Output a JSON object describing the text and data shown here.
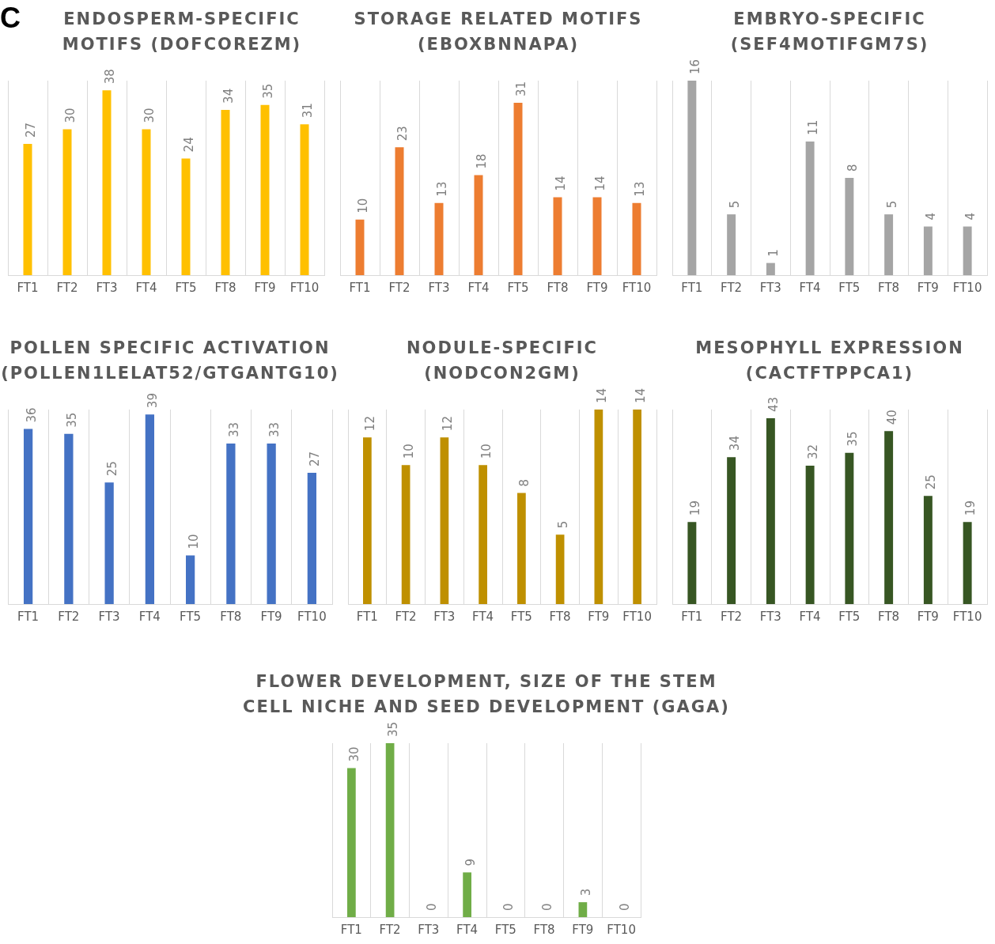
{
  "chart_data": [
    {
      "type": "bar",
      "title": "ENDOSPERM-SPECIFIC MOTIFS (DOFCOREZM)",
      "annotations": [
        "C"
      ],
      "categories": [
        "FT1",
        "FT2",
        "FT3",
        "FT4",
        "FT5",
        "FT8",
        "FT9",
        "FT10"
      ],
      "values": [
        27,
        30,
        38,
        30,
        24,
        34,
        35,
        31
      ],
      "color": "#ffc000",
      "data_labels": true,
      "grid": "x",
      "tick_labels": "x",
      "legend": false
    },
    {
      "type": "bar",
      "title": "STORAGE RELATED MOTIFS (EBOXBNNAPA)",
      "categories": [
        "FT1",
        "FT2",
        "FT3",
        "FT4",
        "FT5",
        "FT8",
        "FT9",
        "FT10"
      ],
      "values": [
        10,
        23,
        13,
        18,
        31,
        14,
        14,
        13
      ],
      "color": "#ed7d31",
      "data_labels": true,
      "grid": "x",
      "tick_labels": "x",
      "legend": false
    },
    {
      "type": "bar",
      "title": "EMBRYO-SPECIFIC (SEF4MOTIFGM7S)",
      "categories": [
        "FT1",
        "FT2",
        "FT3",
        "FT4",
        "FT5",
        "FT8",
        "FT9",
        "FT10"
      ],
      "values": [
        16,
        5,
        1,
        11,
        8,
        5,
        4,
        4
      ],
      "color": "#a5a5a5",
      "data_labels": true,
      "grid": "x",
      "tick_labels": "x",
      "legend": false
    },
    {
      "type": "bar",
      "title": "POLLEN SPECIFIC ACTIVATION (POLLEN1LELAT52/GTGANTG10)",
      "categories": [
        "FT1",
        "FT2",
        "FT3",
        "FT4",
        "FT5",
        "FT8",
        "FT9",
        "FT10"
      ],
      "values": [
        36,
        35,
        25,
        39,
        10,
        33,
        33,
        27
      ],
      "color": "#4472c4",
      "data_labels": true,
      "grid": "x",
      "tick_labels": "x",
      "legend": false
    },
    {
      "type": "bar",
      "title": "NODULE-SPECIFIC (NODCON2GM)",
      "categories": [
        "FT1",
        "FT2",
        "FT3",
        "FT4",
        "FT5",
        "FT8",
        "FT9",
        "FT10"
      ],
      "values": [
        12,
        10,
        12,
        10,
        8,
        5,
        14,
        14
      ],
      "color": "#bf9000",
      "data_labels": true,
      "grid": "x",
      "tick_labels": "x",
      "legend": false
    },
    {
      "type": "bar",
      "title": "MESOPHYLL EXPRESSION (CACTFTPPCA1)",
      "categories": [
        "FT1",
        "FT2",
        "FT3",
        "FT4",
        "FT5",
        "FT8",
        "FT9",
        "FT10"
      ],
      "values": [
        19,
        34,
        43,
        32,
        35,
        40,
        25,
        19
      ],
      "color": "#375623",
      "data_labels": true,
      "grid": "x",
      "tick_labels": "x",
      "legend": false
    },
    {
      "type": "bar",
      "title": "FLOWER DEVELOPMENT, SIZE OF THE STEM CELL NICHE AND SEED DEVELOPMENT (GAGA)",
      "categories": [
        "FT1",
        "FT2",
        "FT3",
        "FT4",
        "FT5",
        "FT8",
        "FT9",
        "FT10"
      ],
      "values": [
        30,
        35,
        0,
        9,
        0,
        0,
        3,
        0
      ],
      "color": "#70ad47",
      "data_labels": true,
      "grid": "x",
      "tick_labels": "x",
      "legend": false
    }
  ]
}
